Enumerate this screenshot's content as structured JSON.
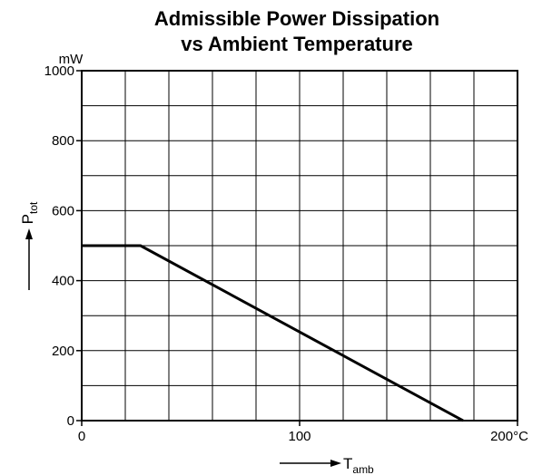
{
  "chart_data": {
    "type": "line",
    "title_lines": [
      "Admissible Power Dissipation",
      "vs Ambient Temperature"
    ],
    "ylabel": {
      "main": "P",
      "sub": "tot"
    },
    "xlabel": {
      "main": "T",
      "sub": "amb"
    },
    "y_unit": "mW",
    "x_unit": "°C",
    "xlim": [
      0,
      200
    ],
    "ylim": [
      0,
      1000
    ],
    "x_grid_step": 20,
    "y_grid_step": 100,
    "grid": true,
    "x_tick_labels": [
      {
        "value": 0,
        "label": "0"
      },
      {
        "value": 100,
        "label": "100"
      },
      {
        "value": 200,
        "label": "200"
      }
    ],
    "y_tick_labels": [
      {
        "value": 0,
        "label": "0"
      },
      {
        "value": 200,
        "label": "200"
      },
      {
        "value": 400,
        "label": "400"
      },
      {
        "value": 600,
        "label": "600"
      },
      {
        "value": 800,
        "label": "800"
      },
      {
        "value": 1000,
        "label": "1000"
      }
    ],
    "series": [
      {
        "x": [
          0,
          27,
          175
        ],
        "y": [
          500,
          500,
          0
        ]
      }
    ]
  }
}
